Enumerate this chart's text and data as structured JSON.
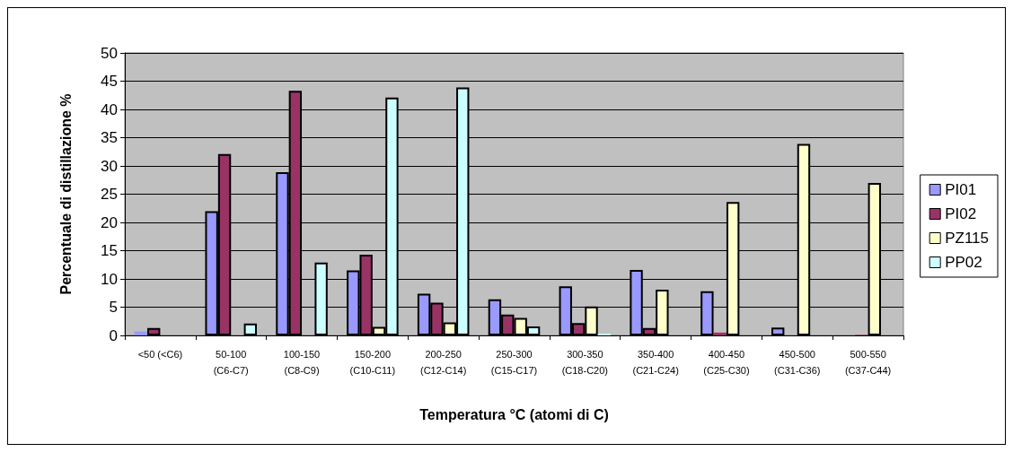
{
  "chart_data": {
    "type": "bar",
    "xlabel": "Temperatura °C (atomi di C)",
    "ylabel": "Percentuale di distillazione %",
    "categories": [
      "<50 (<C6)",
      "50-100\n(C6-C7)",
      "100-150\n(C8-C9)",
      "150-200\n(C10-C11)",
      "200-250\n(C12-C14)",
      "250-300\n(C15-C17)",
      "300-350\n(C18-C20)",
      "350-400\n(C21-C24)",
      "400-450\n(C25-C30)",
      "450-500\n(C31-C36)",
      "500-550\n(C37-C44)"
    ],
    "series": [
      {
        "name": "PI01",
        "color": "#9999ff",
        "values": [
          0.7,
          22,
          28.9,
          11.5,
          7.4,
          6.4,
          8.7,
          11.6,
          7.8,
          1.4,
          null
        ]
      },
      {
        "name": "PI02",
        "color": "#993366",
        "values": [
          1.3,
          32.1,
          43.3,
          14.3,
          5.8,
          3.7,
          2.2,
          1.3,
          0.5,
          null,
          0.1
        ]
      },
      {
        "name": "PZ115",
        "color": "#ffffcc",
        "values": [
          null,
          null,
          null,
          1.5,
          2.3,
          3.1,
          5.1,
          8.1,
          23.6,
          33.9,
          27
        ]
      },
      {
        "name": "PP02",
        "color": "#ccffff",
        "values": [
          null,
          2.1,
          12.9,
          42.1,
          43.9,
          1.6,
          0.3,
          null,
          null,
          null,
          null
        ]
      }
    ],
    "ylim": [
      0,
      50
    ],
    "yticks": [
      0,
      5,
      10,
      15,
      20,
      25,
      30,
      35,
      40,
      45,
      50
    ],
    "grid": "y",
    "legend": "right"
  }
}
